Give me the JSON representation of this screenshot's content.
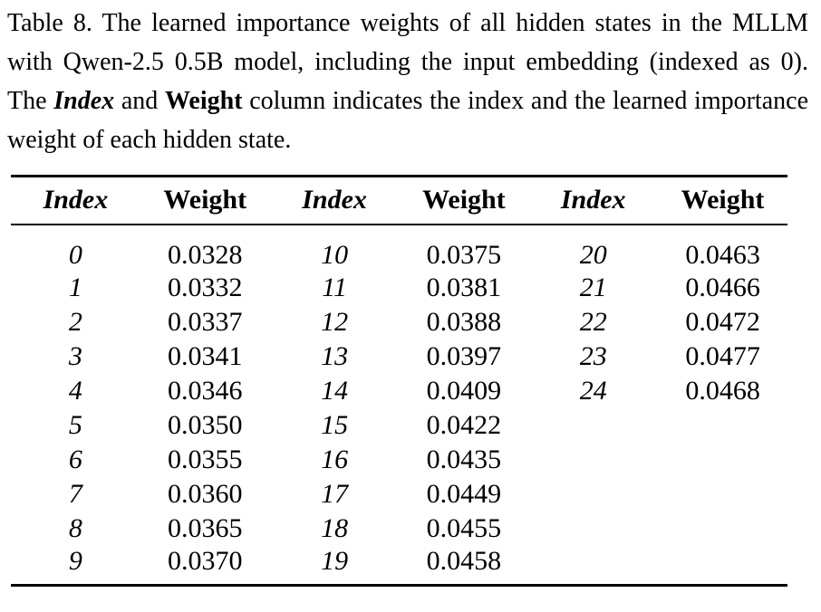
{
  "page": {
    "background": "#ffffff",
    "text_color": "#000000",
    "rule_color": "#000000"
  },
  "caption": {
    "segments": [
      {
        "text": "Table 8. The learned importance weights of all hidden states in the MLLM with Qwen-2.5 0.5B model, including the input embedding (indexed as 0). The ",
        "style": "normal"
      },
      {
        "text": "Index",
        "style": "bold-italic"
      },
      {
        "text": " and ",
        "style": "normal"
      },
      {
        "text": "Weight",
        "style": "bold"
      },
      {
        "text": " column indicates the index and the learned importance weight of each hidden state.",
        "style": "normal"
      }
    ]
  },
  "table": {
    "columns": [
      {
        "label": "Index",
        "type": "index"
      },
      {
        "label": "Weight",
        "type": "weight"
      },
      {
        "label": "Index",
        "type": "index"
      },
      {
        "label": "Weight",
        "type": "weight"
      },
      {
        "label": "Index",
        "type": "index"
      },
      {
        "label": "Weight",
        "type": "weight"
      }
    ],
    "rows": [
      [
        "0",
        "0.0328",
        "10",
        "0.0375",
        "20",
        "0.0463"
      ],
      [
        "1",
        "0.0332",
        "11",
        "0.0381",
        "21",
        "0.0466"
      ],
      [
        "2",
        "0.0337",
        "12",
        "0.0388",
        "22",
        "0.0472"
      ],
      [
        "3",
        "0.0341",
        "13",
        "0.0397",
        "23",
        "0.0477"
      ],
      [
        "4",
        "0.0346",
        "14",
        "0.0409",
        "24",
        "0.0468"
      ],
      [
        "5",
        "0.0350",
        "15",
        "0.0422",
        "",
        ""
      ],
      [
        "6",
        "0.0355",
        "16",
        "0.0435",
        "",
        ""
      ],
      [
        "7",
        "0.0360",
        "17",
        "0.0449",
        "",
        ""
      ],
      [
        "8",
        "0.0365",
        "18",
        "0.0455",
        "",
        ""
      ],
      [
        "9",
        "0.0370",
        "19",
        "0.0458",
        "",
        ""
      ]
    ]
  }
}
